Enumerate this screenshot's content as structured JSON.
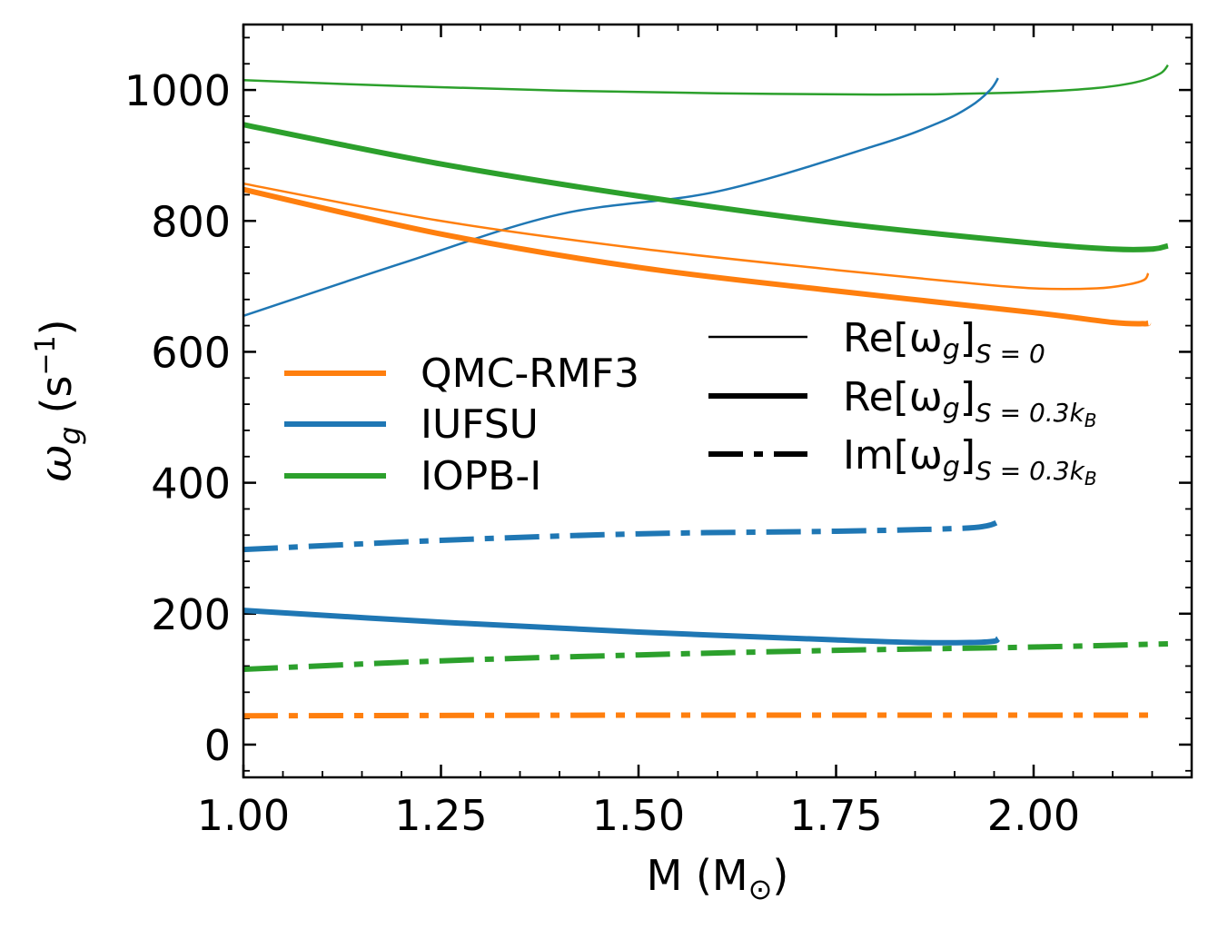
{
  "chart_data": {
    "type": "line",
    "xlabel": "M (M",
    "xlabel_sub": "⊙",
    "xlabel_close": ")",
    "ylabel": "ω",
    "ylabel_sub": "g",
    "ylabel_unit": "(s",
    "ylabel_sup": "−1",
    "ylabel_close": ")",
    "xlim": [
      1.0,
      2.2
    ],
    "ylim": [
      -50,
      1100
    ],
    "xticks": [
      1.0,
      1.25,
      1.5,
      1.75,
      2.0
    ],
    "xtick_labels": [
      "1.00",
      "1.25",
      "1.50",
      "1.75",
      "2.00"
    ],
    "yticks": [
      0,
      200,
      400,
      600,
      800,
      1000
    ],
    "ytick_labels": [
      "0",
      "200",
      "400",
      "600",
      "800",
      "1000"
    ],
    "legend_models": [
      {
        "name": "QMC-RMF3",
        "color": "#ff7f0e"
      },
      {
        "name": "IUFSU",
        "color": "#1f77b4"
      },
      {
        "name": "IOPB-I",
        "color": "#2ca02c"
      }
    ],
    "legend_styles": [
      {
        "label": "Re[ω",
        "sub_g": "g",
        "close": "]",
        "subscript": "S = 0",
        "style": "thin"
      },
      {
        "label": "Re[ω",
        "sub_g": "g",
        "close": "]",
        "subscript": "S = 0.3k",
        "subscript_B": "B",
        "style": "thick"
      },
      {
        "label": "Im[ω",
        "sub_g": "g",
        "close": "]",
        "subscript": "S = 0.3k",
        "subscript_B": "B",
        "style": "dashdot"
      }
    ],
    "series": [
      {
        "name": "IOPB-I Re S=0",
        "color": "#2ca02c",
        "style": "thin",
        "x": [
          1.0,
          1.2,
          1.4,
          1.6,
          1.8,
          1.9,
          2.0,
          2.08,
          2.13,
          2.16,
          2.17
        ],
        "y": [
          1015,
          1006,
          999,
          995,
          993,
          994,
          997,
          1003,
          1012,
          1025,
          1038
        ]
      },
      {
        "name": "IUFSU Re S=0",
        "color": "#1f77b4",
        "style": "thin",
        "x": [
          1.0,
          1.2,
          1.4,
          1.6,
          1.8,
          1.88,
          1.92,
          1.945,
          1.955
        ],
        "y": [
          655,
          735,
          810,
          845,
          915,
          950,
          975,
          1000,
          1018
        ]
      },
      {
        "name": "IOPB-I Re S=0.3",
        "color": "#2ca02c",
        "style": "thick",
        "x": [
          1.0,
          1.25,
          1.5,
          1.75,
          2.0,
          2.1,
          2.15,
          2.17
        ],
        "y": [
          947,
          887,
          838,
          797,
          766,
          757,
          757,
          762
        ]
      },
      {
        "name": "QMC-RMF3 Re S=0",
        "color": "#ff7f0e",
        "style": "thin",
        "x": [
          1.0,
          1.25,
          1.5,
          1.75,
          1.9,
          2.0,
          2.08,
          2.12,
          2.14,
          2.145
        ],
        "y": [
          857,
          800,
          758,
          725,
          707,
          697,
          697,
          703,
          710,
          720
        ]
      },
      {
        "name": "QMC-RMF3 Re S=0.3",
        "color": "#ff7f0e",
        "style": "thick",
        "x": [
          1.0,
          1.25,
          1.5,
          1.75,
          2.0,
          2.1,
          2.14,
          2.145
        ],
        "y": [
          848,
          780,
          729,
          693,
          660,
          645,
          643,
          644
        ]
      },
      {
        "name": "IUFSU Im S=0.3",
        "color": "#1f77b4",
        "style": "dashdot",
        "x": [
          1.0,
          1.25,
          1.5,
          1.75,
          1.9,
          1.94,
          1.955
        ],
        "y": [
          298,
          312,
          322,
          326,
          330,
          334,
          340
        ]
      },
      {
        "name": "IUFSU Re S=0.3",
        "color": "#1f77b4",
        "style": "thick",
        "x": [
          1.0,
          1.25,
          1.5,
          1.75,
          1.85,
          1.92,
          1.95,
          1.955
        ],
        "y": [
          205,
          187,
          172,
          160,
          156,
          156,
          158,
          162
        ]
      },
      {
        "name": "IOPB-I Im S=0.3",
        "color": "#2ca02c",
        "style": "dashdot",
        "x": [
          1.0,
          1.25,
          1.5,
          1.75,
          2.0,
          2.17
        ],
        "y": [
          115,
          128,
          137,
          144,
          149,
          154
        ]
      },
      {
        "name": "QMC-RMF3 Im S=0.3",
        "color": "#ff7f0e",
        "style": "dashdot",
        "x": [
          1.0,
          1.5,
          2.0,
          2.145
        ],
        "y": [
          44,
          45,
          45,
          45
        ]
      }
    ]
  }
}
